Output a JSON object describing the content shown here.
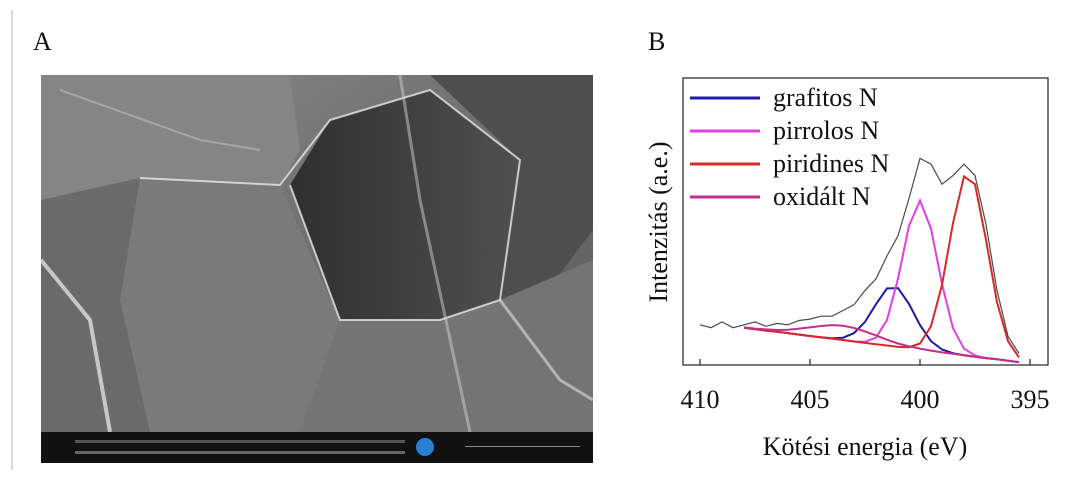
{
  "panel_a": {
    "label": "A"
  },
  "chart_data": {
    "type": "line",
    "panel_label": "B",
    "x_label": "Kötési energia (eV)",
    "y_label": "Intenzitás (a.e.)",
    "xlim": [
      410,
      395
    ],
    "xticks": [
      410,
      405,
      400,
      395
    ],
    "ylim": [
      0,
      100
    ],
    "legend": "upper left",
    "x": [
      408,
      407.5,
      407,
      406.5,
      406,
      405.5,
      405,
      404.5,
      404,
      403.5,
      403,
      402.5,
      402,
      401.5,
      401,
      400.5,
      400,
      399.5,
      399,
      398.5,
      398,
      397.5,
      397,
      396.5,
      396,
      395.5
    ],
    "series": [
      {
        "name": "grafitos N",
        "color": "#1c1ca8",
        "values": [
          13.0,
          12.5,
          12.0,
          11.6,
          11.1,
          10.6,
          10.1,
          9.7,
          9.3,
          9.5,
          11.1,
          15.0,
          21.2,
          26.7,
          26.8,
          21.3,
          13.9,
          8.3,
          5.4,
          4.1,
          3.4,
          2.9,
          2.4,
          2.0,
          1.5,
          1.0
        ]
      },
      {
        "name": "pirrolos N",
        "color": "#e33fe3",
        "values": [
          13.0,
          12.5,
          12.0,
          11.6,
          11.1,
          10.6,
          10.1,
          9.6,
          9.2,
          8.7,
          8.2,
          8.1,
          9.5,
          15.7,
          30.1,
          48.5,
          57.3,
          47.5,
          28.2,
          12.8,
          5.7,
          3.3,
          2.4,
          2.0,
          1.5,
          1.0
        ]
      },
      {
        "name": "piridines N",
        "color": "#d82828",
        "values": [
          13.0,
          12.5,
          12.0,
          11.6,
          11.1,
          10.6,
          10.1,
          9.6,
          9.2,
          8.7,
          8.2,
          7.7,
          7.2,
          6.8,
          6.3,
          6.2,
          7.5,
          13.5,
          27.9,
          49.4,
          65.7,
          63.0,
          43.6,
          21.9,
          8.3,
          2.6
        ]
      },
      {
        "name": "oxidált N",
        "color": "#c2308c",
        "values": [
          13.1,
          12.7,
          12.4,
          12.2,
          12.3,
          12.7,
          13.1,
          13.6,
          13.9,
          13.7,
          12.9,
          11.7,
          10.3,
          8.8,
          7.5,
          6.5,
          5.7,
          5.0,
          4.4,
          3.9,
          3.4,
          2.9,
          2.4,
          2.0,
          1.5,
          1.0
        ]
      },
      {
        "color": "#4a4a4a",
        "x": [
          410,
          409.5,
          409,
          408.5,
          408,
          407.5,
          407,
          406.5,
          406,
          405.5,
          405,
          404.5,
          404,
          403.5,
          403,
          402.5,
          402,
          401.5,
          401,
          400.5,
          400,
          399.5,
          399,
          398.5,
          398,
          397.5,
          397,
          396.5,
          396,
          395.5
        ],
        "values": [
          14,
          13,
          15,
          13,
          14,
          15,
          13.5,
          14.5,
          14,
          15.5,
          16,
          17,
          17,
          19,
          21,
          26,
          30,
          38,
          45,
          58,
          72,
          70,
          63,
          66,
          70,
          66,
          49,
          26,
          10,
          4
        ]
      }
    ]
  }
}
